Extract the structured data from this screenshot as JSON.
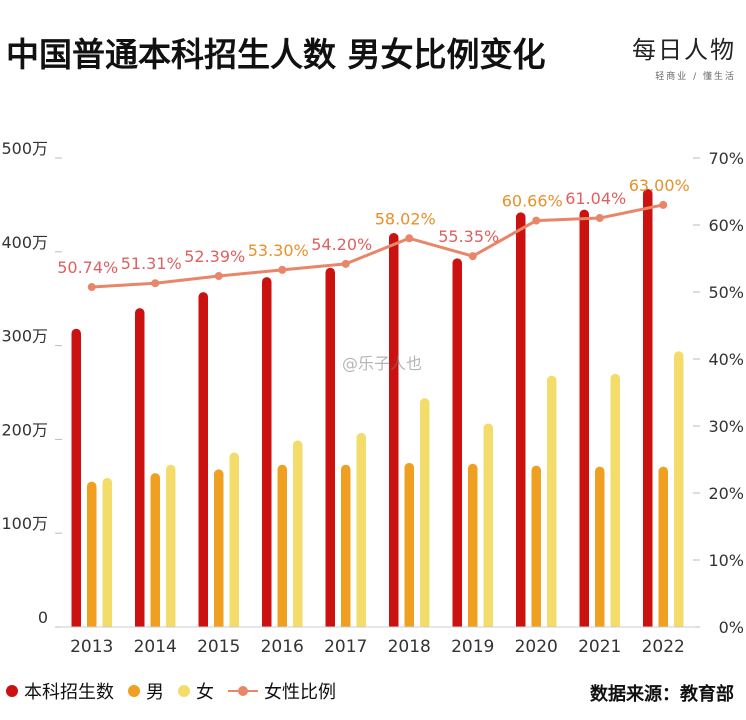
{
  "header": {
    "title": "中国普通本科招生人数 男女比例变化",
    "brand_name": "每日人物",
    "brand_slogan": "轻商业 / 懂生活"
  },
  "watermark": "@乐子人也",
  "source": "数据来源：教育部",
  "colors": {
    "total": "#cc1111",
    "male": "#f0a020",
    "female": "#f3dc6a",
    "ratio_line": "#e8866a",
    "ratio_label_a": "#e06060",
    "ratio_label_b": "#e8902a"
  },
  "chart_data": {
    "type": "bar",
    "title": "中国普通本科招生人数 男女比例变化",
    "categories": [
      "2013",
      "2014",
      "2015",
      "2016",
      "2017",
      "2018",
      "2019",
      "2020",
      "2021",
      "2022"
    ],
    "series": [
      {
        "name": "本科招生数",
        "type": "bar",
        "axis": "left",
        "values": [
          318,
          340,
          357,
          373,
          383,
          420,
          393,
          442,
          445,
          467
        ]
      },
      {
        "name": "男",
        "type": "bar",
        "axis": "left",
        "values": [
          155,
          164,
          168,
          173,
          173,
          175,
          174,
          172,
          171,
          171
        ]
      },
      {
        "name": "女",
        "type": "bar",
        "axis": "left",
        "values": [
          159,
          173,
          186,
          199,
          207,
          244,
          217,
          268,
          270,
          294
        ]
      },
      {
        "name": "女性比例",
        "type": "line",
        "axis": "right",
        "values": [
          50.74,
          51.31,
          52.39,
          53.3,
          54.2,
          58.02,
          55.35,
          60.66,
          61.04,
          63.0
        ]
      }
    ],
    "ratio_labels": [
      "50.74%",
      "51.31%",
      "52.39%",
      "53.30%",
      "54.20%",
      "58.02%",
      "55.35%",
      "60.66%",
      "61.04%",
      "63.00%"
    ],
    "ylim_left": [
      0,
      500
    ],
    "ylim_right": [
      0,
      70
    ],
    "yticks_left": [
      "0",
      "100万",
      "200万",
      "300万",
      "400万",
      "500万"
    ],
    "yticks_right": [
      "0%",
      "10%",
      "20%",
      "30%",
      "40%",
      "50%",
      "60%",
      "70%"
    ],
    "legend": [
      "本科招生数",
      "男",
      "女",
      "女性比例"
    ],
    "legend_position": "bottom-left",
    "grid": false
  }
}
